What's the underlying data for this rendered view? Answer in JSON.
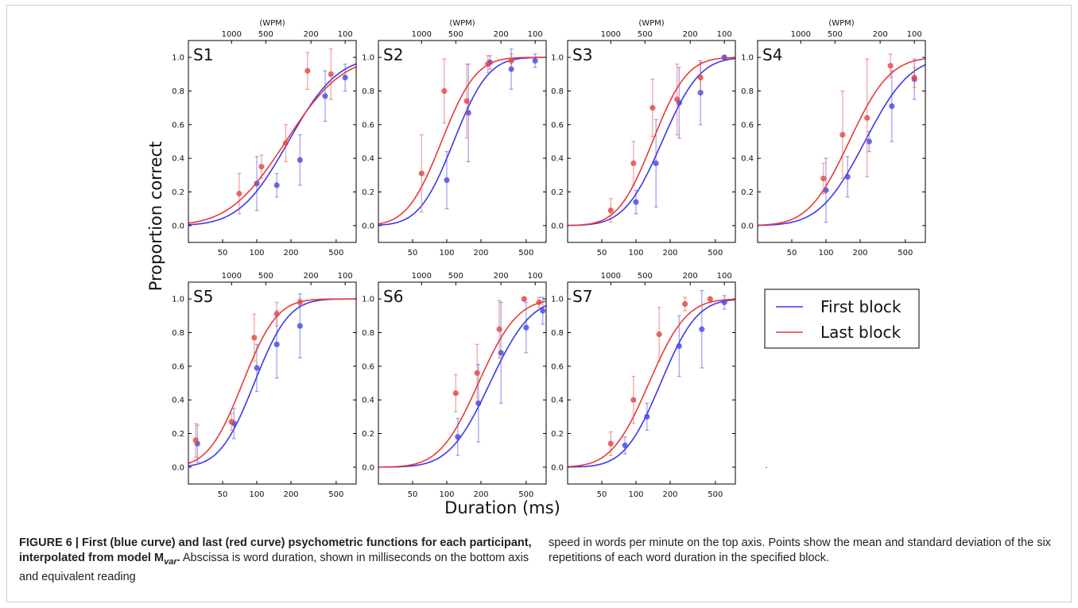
{
  "figure": {
    "ylabel": "Proportion correct",
    "xlabel": "Duration (ms)",
    "top_axis_unit": "(WPM)",
    "legend": [
      {
        "label": "First block",
        "color": "#3a3ae8"
      },
      {
        "label": "Last block",
        "color": "#e83a3a"
      }
    ]
  },
  "caption": {
    "bold": "FIGURE 6 | First (blue curve) and last (red curve) psychometric functions for each participant, interpolated from model M",
    "bold_sub": "var",
    "bold_end": ".",
    "text_left": " Abscissa is word duration, shown in milliseconds on the bottom axis and equivalent reading",
    "text_right": "speed in words per minute on the top axis. Points show the mean and standard deviation of the six repetitions of each word duration in the specified block."
  },
  "chart_data": [
    {
      "type": "scatter",
      "title": "S1",
      "xscale": "log",
      "xlim": [
        25,
        750
      ],
      "ylim": [
        -0.1,
        1.1
      ],
      "x_ticks": [
        50,
        100,
        200,
        500
      ],
      "y_ticks": [
        0.0,
        0.2,
        0.4,
        0.6,
        0.8,
        1.0
      ],
      "top_ticks": [
        1000,
        500,
        200,
        100
      ],
      "series": [
        {
          "name": "First block",
          "color": "#3a3ae8",
          "fit": {
            "mu": 190,
            "sigma": 0.78
          },
          "points": [
            [
              100,
              0.25,
              0.16
            ],
            [
              150,
              0.24,
              0.07
            ],
            [
              240,
              0.39,
              0.15
            ],
            [
              400,
              0.77,
              0.15
            ],
            [
              600,
              0.88,
              0.08
            ]
          ]
        },
        {
          "name": "Last block",
          "color": "#e83a3a",
          "fit": {
            "mu": 180,
            "sigma": 0.9
          },
          "points": [
            [
              70,
              0.19,
              0.12
            ],
            [
              110,
              0.35,
              0.07
            ],
            [
              180,
              0.49,
              0.11
            ],
            [
              280,
              0.92,
              0.11
            ],
            [
              450,
              0.9,
              0.15
            ]
          ]
        }
      ]
    },
    {
      "type": "scatter",
      "title": "S2",
      "xscale": "log",
      "xlim": [
        25,
        750
      ],
      "ylim": [
        -0.1,
        1.1
      ],
      "x_ticks": [
        50,
        100,
        200,
        500
      ],
      "y_ticks": [
        0.0,
        0.2,
        0.4,
        0.6,
        0.8,
        1.0
      ],
      "top_ticks": [
        1000,
        500,
        200,
        100
      ],
      "series": [
        {
          "name": "First block",
          "color": "#3a3ae8",
          "fit": {
            "mu": 115,
            "sigma": 0.55
          },
          "points": [
            [
              100,
              0.27,
              0.17
            ],
            [
              155,
              0.67,
              0.29
            ],
            [
              240,
              0.97,
              0.04
            ],
            [
              370,
              0.93,
              0.12
            ],
            [
              600,
              0.98,
              0.04
            ]
          ]
        },
        {
          "name": "Last block",
          "color": "#e83a3a",
          "fit": {
            "mu": 90,
            "sigma": 0.55
          },
          "points": [
            [
              60,
              0.31,
              0.23
            ],
            [
              95,
              0.8,
              0.19
            ],
            [
              150,
              0.74,
              0.22
            ],
            [
              230,
              0.96,
              0.05
            ],
            [
              370,
              0.98,
              0.04
            ]
          ]
        }
      ]
    },
    {
      "type": "scatter",
      "title": "S3",
      "xscale": "log",
      "xlim": [
        25,
        750
      ],
      "ylim": [
        -0.1,
        1.1
      ],
      "x_ticks": [
        50,
        100,
        200,
        500
      ],
      "y_ticks": [
        0.0,
        0.2,
        0.4,
        0.6,
        0.8,
        1.0
      ],
      "top_ticks": [
        1000,
        500,
        200,
        100
      ],
      "series": [
        {
          "name": "First block",
          "color": "#3a3ae8",
          "fit": {
            "mu": 170,
            "sigma": 0.6
          },
          "points": [
            [
              100,
              0.14,
              0.07
            ],
            [
              150,
              0.37,
              0.26
            ],
            [
              240,
              0.73,
              0.21
            ],
            [
              370,
              0.79,
              0.19
            ],
            [
              600,
              1.0,
              0.01
            ]
          ]
        },
        {
          "name": "Last block",
          "color": "#e83a3a",
          "fit": {
            "mu": 140,
            "sigma": 0.55
          },
          "points": [
            [
              60,
              0.09,
              0.07
            ],
            [
              95,
              0.37,
              0.13
            ],
            [
              140,
              0.7,
              0.17
            ],
            [
              230,
              0.75,
              0.21
            ],
            [
              370,
              0.88,
              0.09
            ]
          ]
        }
      ]
    },
    {
      "type": "scatter",
      "title": "S4",
      "xscale": "log",
      "xlim": [
        25,
        750
      ],
      "ylim": [
        -0.1,
        1.1
      ],
      "x_ticks": [
        50,
        100,
        200,
        500
      ],
      "y_ticks": [
        0.0,
        0.2,
        0.4,
        0.6,
        0.8,
        1.0
      ],
      "top_ticks": [
        1000,
        500,
        200,
        100
      ],
      "series": [
        {
          "name": "First block",
          "color": "#3a3ae8",
          "fit": {
            "mu": 220,
            "sigma": 0.72
          },
          "points": [
            [
              100,
              0.21,
              0.19
            ],
            [
              155,
              0.29,
              0.12
            ],
            [
              240,
              0.5,
              0.06
            ],
            [
              380,
              0.71,
              0.21
            ],
            [
              600,
              0.87,
              0.12
            ]
          ]
        },
        {
          "name": "Last block",
          "color": "#e83a3a",
          "fit": {
            "mu": 160,
            "sigma": 0.65
          },
          "points": [
            [
              95,
              0.28,
              0.09
            ],
            [
              140,
              0.54,
              0.26
            ],
            [
              230,
              0.64,
              0.35
            ],
            [
              370,
              0.95,
              0.07
            ],
            [
              600,
              0.88,
              0.06
            ]
          ]
        }
      ]
    },
    {
      "type": "scatter",
      "title": "S5",
      "xscale": "log",
      "xlim": [
        25,
        750
      ],
      "ylim": [
        -0.1,
        1.1
      ],
      "x_ticks": [
        50,
        100,
        200,
        500
      ],
      "y_ticks": [
        0.0,
        0.2,
        0.4,
        0.6,
        0.8,
        1.0
      ],
      "top_ticks": [
        1000,
        500,
        200,
        100
      ],
      "series": [
        {
          "name": "First block",
          "color": "#3a3ae8",
          "fit": {
            "mu": 95,
            "sigma": 0.55
          },
          "points": [
            [
              30,
              0.14,
              0.11
            ],
            [
              63,
              0.26,
              0.09
            ],
            [
              100,
              0.59,
              0.14
            ],
            [
              150,
              0.73,
              0.2
            ],
            [
              240,
              0.84,
              0.19
            ]
          ]
        },
        {
          "name": "Last block",
          "color": "#e83a3a",
          "fit": {
            "mu": 75,
            "sigma": 0.55
          },
          "points": [
            [
              29,
              0.16,
              0.1
            ],
            [
              60,
              0.27,
              0.05
            ],
            [
              95,
              0.77,
              0.14
            ],
            [
              150,
              0.91,
              0.07
            ],
            [
              240,
              0.98,
              0.02
            ]
          ]
        }
      ]
    },
    {
      "type": "scatter",
      "title": "S6",
      "xscale": "log",
      "xlim": [
        25,
        750
      ],
      "ylim": [
        -0.1,
        1.1
      ],
      "x_ticks": [
        50,
        100,
        200,
        500
      ],
      "y_ticks": [
        0.0,
        0.2,
        0.4,
        0.6,
        0.8,
        1.0
      ],
      "top_ticks": [
        1000,
        500,
        200,
        100
      ],
      "series": [
        {
          "name": "First block",
          "color": "#3a3ae8",
          "fit": {
            "mu": 240,
            "sigma": 0.65
          },
          "points": [
            [
              125,
              0.18,
              0.11
            ],
            [
              190,
              0.38,
              0.23
            ],
            [
              300,
              0.68,
              0.3
            ],
            [
              500,
              0.83,
              0.15
            ],
            [
              700,
              0.93,
              0.08
            ]
          ]
        },
        {
          "name": "Last block",
          "color": "#e83a3a",
          "fit": {
            "mu": 190,
            "sigma": 0.62
          },
          "points": [
            [
              120,
              0.44,
              0.11
            ],
            [
              185,
              0.56,
              0.17
            ],
            [
              290,
              0.82,
              0.17
            ],
            [
              480,
              1.0,
              0.01
            ],
            [
              650,
              0.98,
              0.03
            ]
          ]
        }
      ]
    },
    {
      "type": "scatter",
      "title": "S7",
      "xscale": "log",
      "xlim": [
        25,
        750
      ],
      "ylim": [
        -0.1,
        1.1
      ],
      "x_ticks": [
        50,
        100,
        200,
        500
      ],
      "y_ticks": [
        0.0,
        0.2,
        0.4,
        0.6,
        0.8,
        1.0
      ],
      "top_ticks": [
        1000,
        500,
        200,
        100
      ],
      "series": [
        {
          "name": "First block",
          "color": "#3a3ae8",
          "fit": {
            "mu": 165,
            "sigma": 0.58
          },
          "points": [
            [
              80,
              0.13,
              0.05
            ],
            [
              125,
              0.3,
              0.08
            ],
            [
              240,
              0.72,
              0.18
            ],
            [
              380,
              0.82,
              0.23
            ],
            [
              600,
              0.98,
              0.04
            ]
          ]
        },
        {
          "name": "Last block",
          "color": "#e83a3a",
          "fit": {
            "mu": 130,
            "sigma": 0.6
          },
          "points": [
            [
              60,
              0.14,
              0.07
            ],
            [
              95,
              0.4,
              0.14
            ],
            [
              160,
              0.79,
              0.16
            ],
            [
              270,
              0.97,
              0.04
            ],
            [
              450,
              1.0,
              0.01
            ]
          ]
        }
      ]
    }
  ]
}
